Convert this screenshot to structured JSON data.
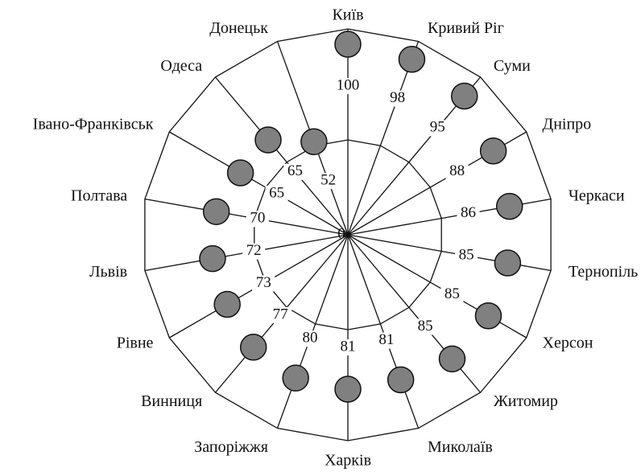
{
  "chart_data": {
    "type": "radial",
    "categories": [
      "Київ",
      "Кривий Ріг",
      "Суми",
      "Дніпро",
      "Черкаси",
      "Тернопіль",
      "Херсон",
      "Житомир",
      "Миколаїв",
      "Харків",
      "Запоріжжя",
      "Винниця",
      "Рівне",
      "Львів",
      "Полтава",
      "Івано-Франківськ",
      "Одеса",
      "Донецьк"
    ],
    "values": [
      100,
      98,
      95,
      88,
      86,
      85,
      85,
      85,
      81,
      81,
      80,
      77,
      73,
      72,
      70,
      65,
      65,
      52
    ],
    "rlim": [
      0,
      100
    ],
    "color": "#808080"
  }
}
